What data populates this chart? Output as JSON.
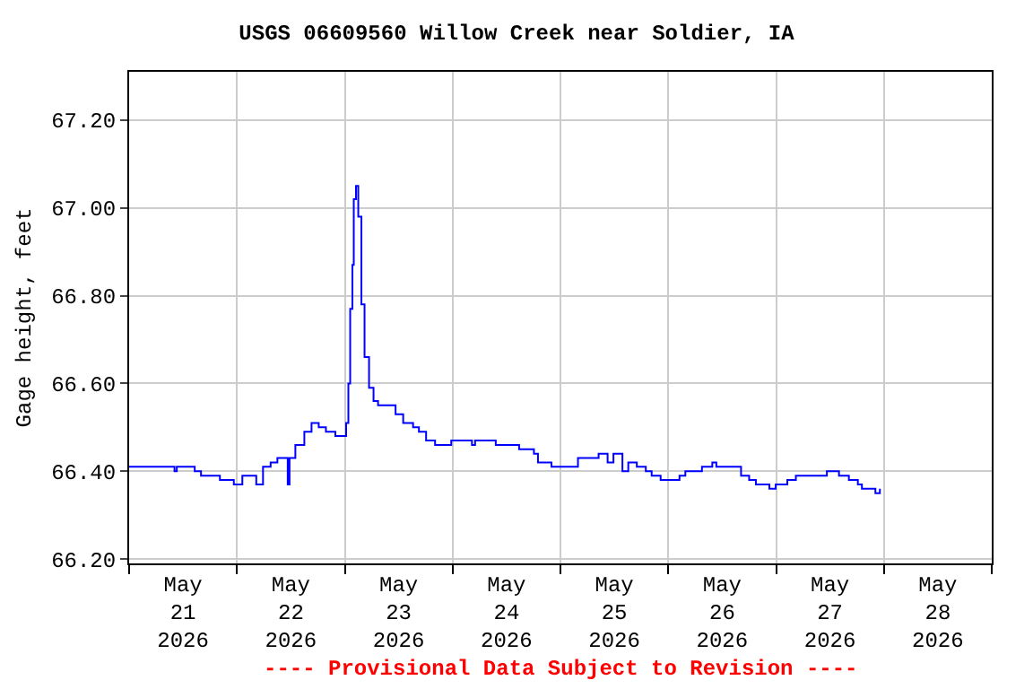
{
  "chart_data": {
    "type": "step",
    "title": "USGS 06609560 Willow Creek near Soldier, IA",
    "ylabel": "Gage height, feet",
    "annotations": [
      "---- Provisional Data Subject to Revision ----"
    ],
    "x": [
      "2026-05-21T00:00",
      "2026-05-21T10:06",
      "2026-05-21T10:36",
      "2026-05-21T12:36",
      "2026-05-21T14:36",
      "2026-05-21T16:00",
      "2026-05-21T20:12",
      "2026-05-21T23:18",
      "2026-05-22T01:12",
      "2026-05-22T04:18",
      "2026-05-22T05:48",
      "2026-05-22T07:30",
      "2026-05-22T09:00",
      "2026-05-22T10:42",
      "2026-05-22T11:18",
      "2026-05-22T11:42",
      "2026-05-22T13:00",
      "2026-05-22T15:00",
      "2026-05-22T16:36",
      "2026-05-22T18:12",
      "2026-05-22T19:48",
      "2026-05-22T21:54",
      "2026-05-22T23:30",
      "2026-05-23T00:18",
      "2026-05-23T00:48",
      "2026-05-23T01:12",
      "2026-05-23T01:42",
      "2026-05-23T02:00",
      "2026-05-23T02:30",
      "2026-05-23T03:00",
      "2026-05-23T03:42",
      "2026-05-23T04:24",
      "2026-05-23T05:24",
      "2026-05-23T06:24",
      "2026-05-23T07:24",
      "2026-05-23T09:54",
      "2026-05-23T11:18",
      "2026-05-23T13:00",
      "2026-05-23T15:12",
      "2026-05-23T16:30",
      "2026-05-23T18:06",
      "2026-05-23T20:06",
      "2026-05-23T23:42",
      "2026-05-24T04:18",
      "2026-05-24T05:00",
      "2026-05-24T08:54",
      "2026-05-24T09:36",
      "2026-05-24T14:12",
      "2026-05-24T14:48",
      "2026-05-24T18:06",
      "2026-05-24T19:00",
      "2026-05-24T22:00",
      "2026-05-24T23:18",
      "2026-05-25T03:18",
      "2026-05-25T03:54",
      "2026-05-25T07:36",
      "2026-05-25T08:30",
      "2026-05-25T10:30",
      "2026-05-25T11:48",
      "2026-05-25T13:48",
      "2026-05-25T15:06",
      "2026-05-25T17:00",
      "2026-05-25T19:00",
      "2026-05-25T20:18",
      "2026-05-25T22:18",
      "2026-05-26T02:00",
      "2026-05-26T02:30",
      "2026-05-26T03:48",
      "2026-05-26T07:30",
      "2026-05-26T09:48",
      "2026-05-26T10:42",
      "2026-05-26T14:54",
      "2026-05-26T16:12",
      "2026-05-26T18:00",
      "2026-05-26T19:30",
      "2026-05-26T22:30",
      "2026-05-26T23:54",
      "2026-05-27T02:30",
      "2026-05-27T04:24",
      "2026-05-27T09:42",
      "2026-05-27T11:18",
      "2026-05-27T13:24",
      "2026-05-27T14:00",
      "2026-05-27T16:12",
      "2026-05-27T18:12",
      "2026-05-27T19:06",
      "2026-05-27T21:30",
      "2026-05-27T22:06",
      "2026-05-27T23:06"
    ],
    "series": [
      {
        "color": "#0000ff",
        "values": [
          66.41,
          66.4,
          66.41,
          66.41,
          66.4,
          66.39,
          66.38,
          66.37,
          66.39,
          66.37,
          66.41,
          66.42,
          66.43,
          66.43,
          66.37,
          66.43,
          66.46,
          66.49,
          66.51,
          66.5,
          66.49,
          66.48,
          66.48,
          66.51,
          66.6,
          66.77,
          66.87,
          67.02,
          67.05,
          66.98,
          66.78,
          66.66,
          66.59,
          66.56,
          66.55,
          66.55,
          66.53,
          66.51,
          66.5,
          66.49,
          66.47,
          66.46,
          66.47,
          66.46,
          66.47,
          66.47,
          66.46,
          66.46,
          66.45,
          66.44,
          66.42,
          66.41,
          66.41,
          66.41,
          66.43,
          66.43,
          66.44,
          66.42,
          66.44,
          66.4,
          66.42,
          66.41,
          66.4,
          66.39,
          66.38,
          66.38,
          66.39,
          66.4,
          66.41,
          66.42,
          66.41,
          66.41,
          66.39,
          66.38,
          66.37,
          66.36,
          66.37,
          66.38,
          66.39,
          66.39,
          66.4,
          66.4,
          66.39,
          66.38,
          66.37,
          66.36,
          66.36,
          66.35,
          66.36
        ]
      }
    ],
    "xlim": [
      "2026-05-21T00:00",
      "2026-05-29T00:00"
    ],
    "xticks": [
      {
        "value": "2026-05-21T12:00",
        "label": "May\n21\n2026"
      },
      {
        "value": "2026-05-22T12:00",
        "label": "May\n22\n2026"
      },
      {
        "value": "2026-05-23T12:00",
        "label": "May\n23\n2026"
      },
      {
        "value": "2026-05-24T12:00",
        "label": "May\n24\n2026"
      },
      {
        "value": "2026-05-25T12:00",
        "label": "May\n25\n2026"
      },
      {
        "value": "2026-05-26T12:00",
        "label": "May\n26\n2026"
      },
      {
        "value": "2026-05-27T12:00",
        "label": "May\n27\n2026"
      },
      {
        "value": "2026-05-28T12:00",
        "label": "May\n28\n2026"
      },
      {
        "value": "2026-05-22T00:00",
        "label": null
      },
      {
        "value": "2026-05-23T00:00",
        "label": null
      },
      {
        "value": "2026-05-24T00:00",
        "label": null
      },
      {
        "value": "2026-05-25T00:00",
        "label": null
      },
      {
        "value": "2026-05-26T00:00",
        "label": null
      },
      {
        "value": "2026-05-27T00:00",
        "label": null
      },
      {
        "value": "2026-05-28T00:00",
        "label": null
      }
    ],
    "ylim": [
      66.19,
      67.31
    ],
    "yticks": [
      {
        "value": 66.2,
        "label": "66.20"
      },
      {
        "value": 66.4,
        "label": "66.40"
      },
      {
        "value": 66.6,
        "label": "66.60"
      },
      {
        "value": 66.8,
        "label": "66.80"
      },
      {
        "value": 67.0,
        "label": "67.00"
      },
      {
        "value": 67.2,
        "label": "67.20"
      }
    ],
    "grid": true,
    "legend": false
  }
}
